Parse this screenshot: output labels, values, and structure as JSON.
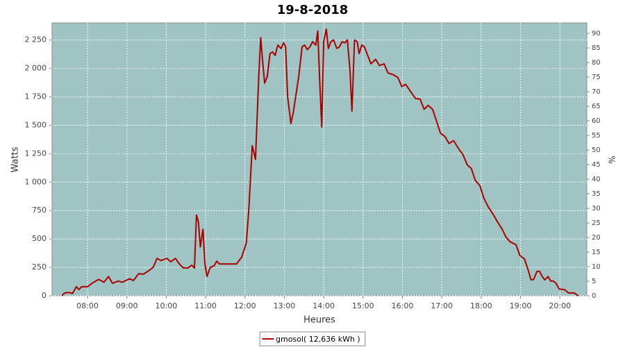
{
  "chart_data": {
    "type": "line",
    "title": "19-8-2018",
    "x_label": "Heures",
    "y_label": "Watts",
    "y2_label": "%",
    "x": [
      "07:21",
      "07:25",
      "07:32",
      "07:37",
      "07:43",
      "07:47",
      "07:51",
      "08:00",
      "08:08",
      "08:17",
      "08:25",
      "08:32",
      "08:38",
      "08:47",
      "08:53",
      "09:04",
      "09:10",
      "09:18",
      "09:25",
      "09:33",
      "09:40",
      "09:46",
      "09:52",
      "10:01",
      "10:07",
      "10:14",
      "10:20",
      "10:26",
      "10:33",
      "10:39",
      "10:43",
      "10:46",
      "10:49",
      "10:52",
      "10:56",
      "10:59",
      "11:02",
      "11:07",
      "11:13",
      "11:17",
      "11:21",
      "11:47",
      "11:55",
      "12:02",
      "12:06",
      "12:11",
      "12:16",
      "12:21",
      "12:24",
      "12:27",
      "12:30",
      "12:34",
      "12:38",
      "12:42",
      "12:46",
      "12:50",
      "12:55",
      "12:59",
      "13:02",
      "13:05",
      "13:10",
      "13:14",
      "13:18",
      "13:22",
      "13:27",
      "13:31",
      "13:35",
      "13:39",
      "13:43",
      "13:48",
      "13:51",
      "13:54",
      "13:57",
      "14:00",
      "14:04",
      "14:07",
      "14:11",
      "14:15",
      "14:20",
      "14:24",
      "14:28",
      "14:32",
      "14:36",
      "14:40",
      "14:43",
      "14:47",
      "14:51",
      "14:54",
      "14:58",
      "15:02",
      "15:08",
      "15:12",
      "15:19",
      "15:25",
      "15:32",
      "15:38",
      "15:46",
      "15:53",
      "15:59",
      "16:05",
      "16:12",
      "16:20",
      "16:27",
      "16:33",
      "16:39",
      "16:46",
      "16:52",
      "16:58",
      "17:05",
      "17:11",
      "17:18",
      "17:26",
      "17:32",
      "17:39",
      "17:45",
      "17:51",
      "17:58",
      "18:04",
      "18:11",
      "18:19",
      "18:25",
      "18:32",
      "18:38",
      "18:44",
      "18:53",
      "18:59",
      "19:06",
      "19:12",
      "19:16",
      "19:20",
      "19:25",
      "19:29",
      "19:33",
      "19:37",
      "19:42",
      "19:46",
      "19:50",
      "19:54",
      "19:59",
      "20:07",
      "20:13",
      "20:22",
      "20:28"
    ],
    "series": [
      {
        "name": "gmosol( 12,636 kWh )",
        "color": "#aa0000",
        "values": [
          0,
          25,
          30,
          20,
          80,
          55,
          80,
          80,
          115,
          145,
          120,
          170,
          110,
          130,
          120,
          150,
          135,
          195,
          190,
          220,
          250,
          330,
          310,
          330,
          300,
          330,
          280,
          245,
          245,
          270,
          245,
          710,
          650,
          430,
          585,
          280,
          170,
          250,
          265,
          305,
          280,
          280,
          340,
          465,
          770,
          1320,
          1200,
          1930,
          2270,
          2055,
          1870,
          1930,
          2130,
          2145,
          2115,
          2205,
          2175,
          2225,
          2190,
          1750,
          1515,
          1625,
          1780,
          1930,
          2190,
          2205,
          2165,
          2190,
          2235,
          2205,
          2330,
          1870,
          1485,
          2235,
          2345,
          2175,
          2235,
          2250,
          2175,
          2190,
          2235,
          2225,
          2250,
          1990,
          1625,
          2250,
          2235,
          2130,
          2205,
          2190,
          2100,
          2040,
          2080,
          2025,
          2040,
          1960,
          1945,
          1920,
          1840,
          1860,
          1800,
          1735,
          1730,
          1640,
          1675,
          1640,
          1535,
          1430,
          1400,
          1340,
          1365,
          1290,
          1245,
          1150,
          1120,
          1015,
          970,
          860,
          780,
          710,
          650,
          585,
          515,
          475,
          450,
          355,
          325,
          220,
          140,
          145,
          215,
          215,
          170,
          140,
          170,
          130,
          130,
          110,
          60,
          55,
          25,
          25,
          0
        ]
      }
    ],
    "xlim": [
      "07:06",
      "20:41"
    ],
    "xticks": [
      "08:00",
      "09:00",
      "10:00",
      "11:00",
      "12:00",
      "13:00",
      "14:00",
      "15:00",
      "16:00",
      "17:00",
      "18:00",
      "19:00",
      "20:00"
    ],
    "ylim": [
      0,
      2400
    ],
    "yticks": [
      0,
      250,
      500,
      750,
      {
        "value": 1000,
        "label": "1 000"
      },
      {
        "value": 1250,
        "label": "1 250"
      },
      {
        "value": 1500,
        "label": "1 500"
      },
      {
        "value": 1750,
        "label": "1 750"
      },
      {
        "value": 2000,
        "label": "2 000"
      },
      {
        "value": 2250,
        "label": "2 250"
      }
    ],
    "y2lim": [
      0,
      93.6
    ],
    "y2ticks": [
      0,
      5,
      10,
      15,
      20,
      25,
      30,
      35,
      40,
      45,
      50,
      55,
      60,
      65,
      70,
      75,
      80,
      85,
      90
    ],
    "grid": true,
    "plot_background": "#a0c4c4",
    "legend": "bottom"
  }
}
